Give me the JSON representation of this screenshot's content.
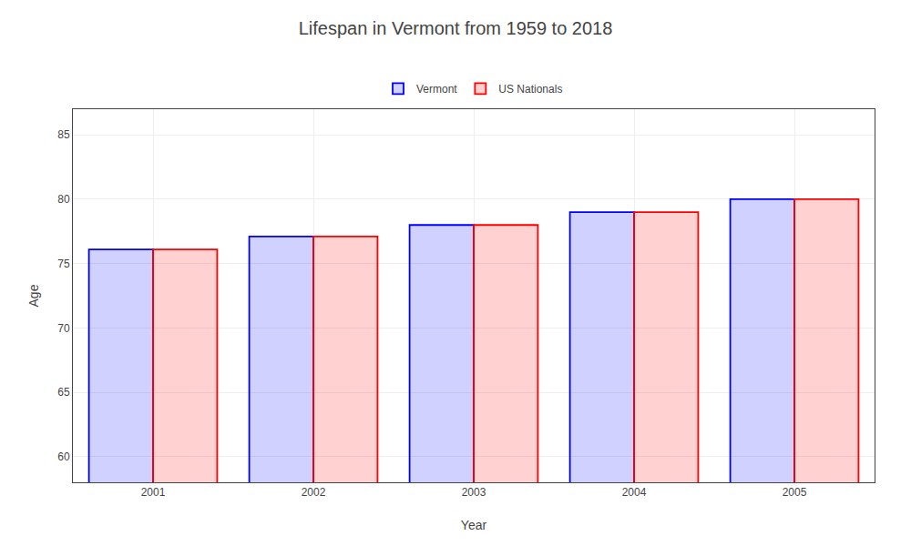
{
  "chart_data": {
    "type": "bar",
    "title": "Lifespan in Vermont from 1959 to 2018",
    "x_label": "Year",
    "y_label": "Age",
    "categories": [
      "2001",
      "2002",
      "2003",
      "2004",
      "2005"
    ],
    "series": [
      {
        "name": "Vermont",
        "color": "#0000ff",
        "values": [
          76.1,
          77.1,
          78.0,
          79.0,
          80.0
        ]
      },
      {
        "name": "US Nationals",
        "color": "#ff0000",
        "values": [
          76.1,
          77.1,
          78.0,
          79.0,
          80.0
        ]
      }
    ],
    "ylim": [
      58,
      87
    ],
    "yticks": [
      60,
      65,
      70,
      75,
      80,
      85
    ],
    "grid": true,
    "legend": "upper center"
  }
}
